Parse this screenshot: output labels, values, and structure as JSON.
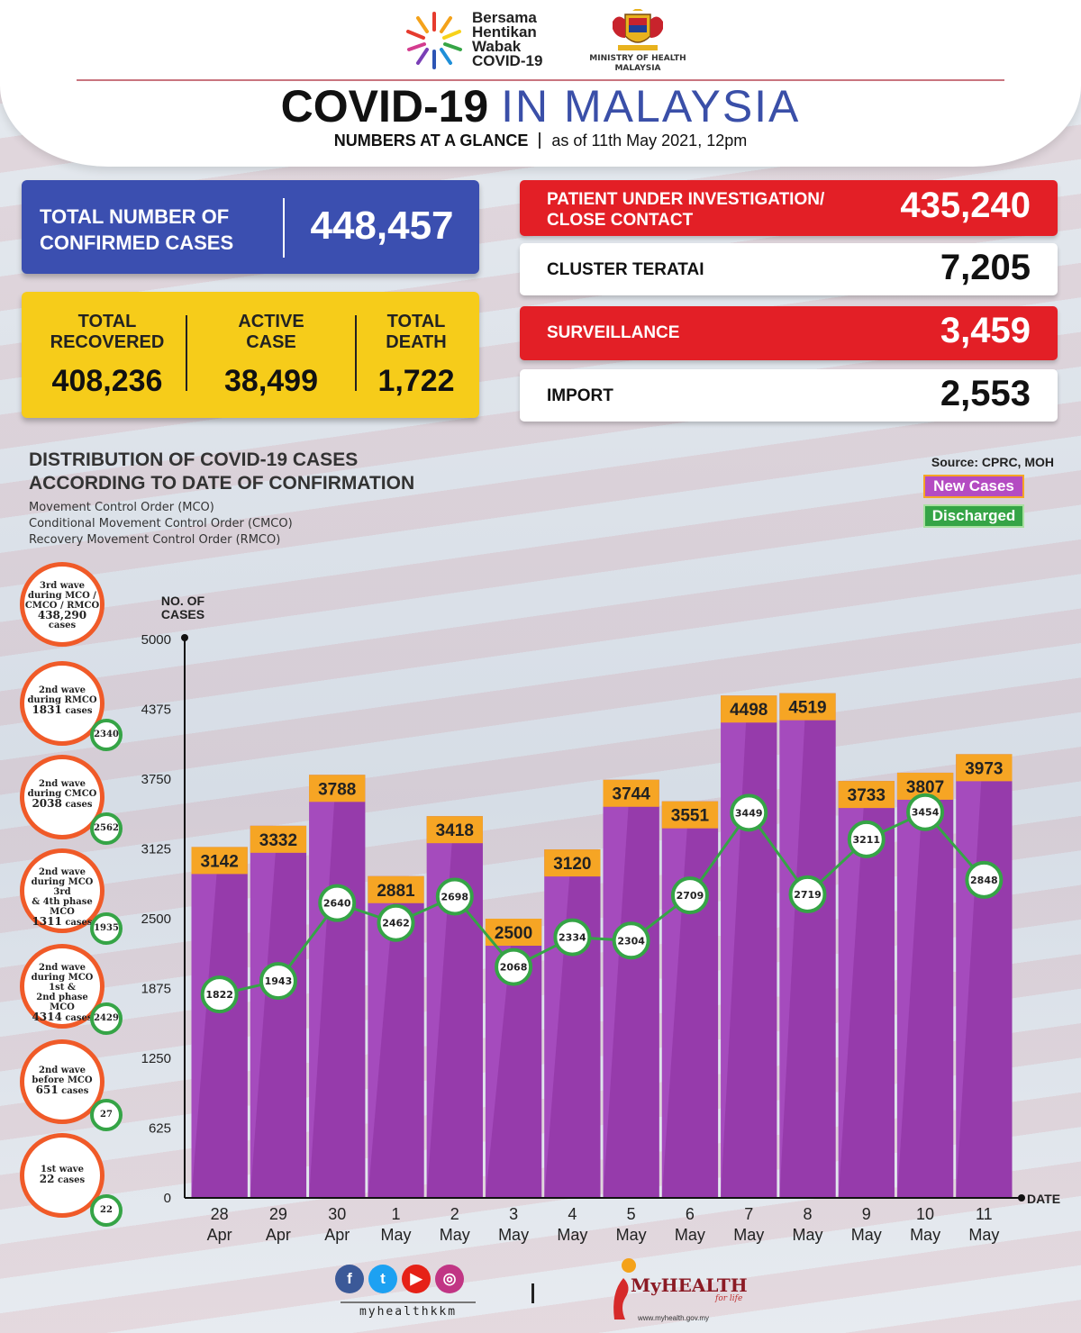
{
  "header": {
    "campaign_lines": [
      "Bersama",
      "Hentikan",
      "Wabak",
      "COVID-19"
    ],
    "ministry": "MINISTRY OF HEALTH MALAYSIA",
    "title_bold": "COVID-19",
    "title_light": "IN MALAYSIA",
    "subtitle_bold": "NUMBERS AT A GLANCE",
    "subtitle_date": "as of 11th May 2021, 12pm"
  },
  "confirmed": {
    "label_line1": "TOTAL NUMBER OF",
    "label_line2": "CONFIRMED CASES",
    "value": "448,457"
  },
  "stats": {
    "recovered": {
      "label_line1": "TOTAL",
      "label_line2": "RECOVERED",
      "value": "408,236"
    },
    "active": {
      "label_line1": "ACTIVE",
      "label_line2": "CASE",
      "value": "38,499"
    },
    "death": {
      "label_line1": "TOTAL",
      "label_line2": "DEATH",
      "value": "1,722"
    }
  },
  "right_boxes": {
    "pui": {
      "label_line1": "PATIENT UNDER INVESTIGATION/",
      "label_line2": "CLOSE CONTACT",
      "value": "435,240"
    },
    "cluster": {
      "label": "CLUSTER TERATAI",
      "value": "7,205"
    },
    "surveillance": {
      "label": "SURVEILLANCE",
      "value": "3,459"
    },
    "import": {
      "label": "IMPORT",
      "value": "2,553"
    }
  },
  "distribution": {
    "title_line1": "DISTRIBUTION OF COVID-19 CASES",
    "title_line2": "ACCORDING TO DATE OF CONFIRMATION",
    "note1": "Movement Control Order (MCO)",
    "note2": "Conditional Movement Control Order (CMCO)",
    "note3": "Recovery Movement Control Order (RMCO)",
    "source": "Source: CPRC, MOH",
    "legend_new": "New Cases",
    "legend_discharged": "Discharged"
  },
  "waves": [
    {
      "l1": "3rd wave",
      "l2": "during MCO /",
      "l3": "CMCO / RMCO",
      "count": "438,290",
      "unit": "cases",
      "badge": ""
    },
    {
      "l1": "2nd wave",
      "l2": "during RMCO",
      "l3": "",
      "count": "1831",
      "unit": "cases",
      "badge": "2340"
    },
    {
      "l1": "2nd wave",
      "l2": "during CMCO",
      "l3": "",
      "count": "2038",
      "unit": "cases",
      "badge": "2562"
    },
    {
      "l1": "2nd wave",
      "l2": "during MCO 3rd",
      "l3": "& 4th phase MCO",
      "count": "1311",
      "unit": "cases",
      "badge": "1935"
    },
    {
      "l1": "2nd wave",
      "l2": "during MCO 1st &",
      "l3": "2nd phase MCO",
      "count": "4314",
      "unit": "cases",
      "badge": "2429"
    },
    {
      "l1": "2nd wave",
      "l2": "before MCO",
      "l3": "",
      "count": "651",
      "unit": "cases",
      "badge": "27"
    },
    {
      "l1": "1st wave",
      "l2": "",
      "l3": "",
      "count": "22",
      "unit": "cases",
      "badge": "22"
    }
  ],
  "chart_data": {
    "type": "bar",
    "ylabel": "NO. OF CASES",
    "xlabel": "DATE",
    "ylim": [
      0,
      5000
    ],
    "yticks": [
      0,
      625,
      1250,
      1875,
      2500,
      3125,
      3750,
      4375,
      5000
    ],
    "categories": [
      [
        "28",
        "Apr"
      ],
      [
        "29",
        "Apr"
      ],
      [
        "30",
        "Apr"
      ],
      [
        "1",
        "May"
      ],
      [
        "2",
        "May"
      ],
      [
        "3",
        "May"
      ],
      [
        "4",
        "May"
      ],
      [
        "5",
        "May"
      ],
      [
        "6",
        "May"
      ],
      [
        "7",
        "May"
      ],
      [
        "8",
        "May"
      ],
      [
        "9",
        "May"
      ],
      [
        "10",
        "May"
      ],
      [
        "11",
        "May"
      ]
    ],
    "series": [
      {
        "name": "New Cases",
        "values": [
          3142,
          3332,
          3788,
          2881,
          3418,
          2500,
          3120,
          3744,
          3551,
          4498,
          4519,
          3733,
          3807,
          3973
        ]
      },
      {
        "name": "Discharged",
        "values": [
          1822,
          1943,
          2640,
          2462,
          2698,
          2068,
          2334,
          2304,
          2709,
          3449,
          2719,
          3211,
          3454,
          2848
        ]
      }
    ],
    "colors": {
      "bar": "#a54bbd",
      "bar_dark": "#8a2f9c",
      "bar_cap": "#f6a524",
      "line": "#35a446"
    }
  },
  "footer": {
    "handle": "myhealthkkm",
    "brand": "MyHEALTH",
    "tagline": "for life",
    "url": "www.myhealth.gov.my",
    "social_icons": [
      "facebook-icon",
      "twitter-icon",
      "youtube-icon",
      "instagram-icon"
    ]
  }
}
